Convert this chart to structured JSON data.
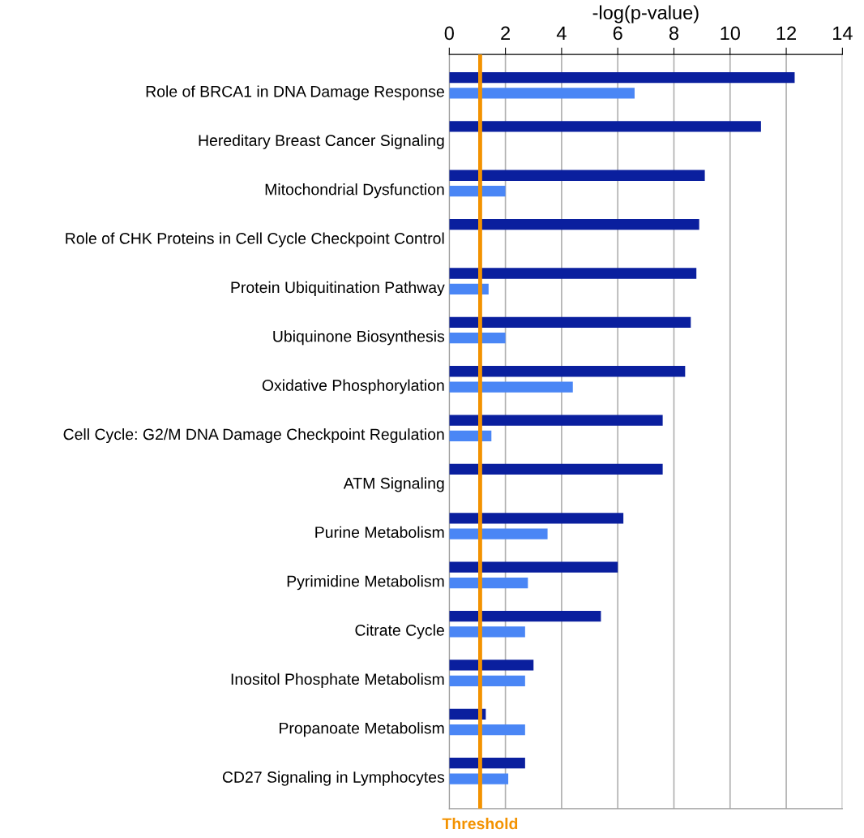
{
  "chart_data": {
    "type": "bar",
    "orientation": "horizontal",
    "xlabel": "-log(p-value)",
    "categories": [
      "Role of BRCA1 in DNA Damage Response",
      "Hereditary Breast Cancer Signaling",
      "Mitochondrial Dysfunction",
      "Role of CHK Proteins in Cell Cycle Checkpoint Control",
      "Protein Ubiquitination Pathway",
      "Ubiquinone Biosynthesis",
      "Oxidative Phosphorylation",
      "Cell Cycle: G2/M DNA Damage Checkpoint Regulation",
      "ATM Signaling",
      "Purine Metabolism",
      "Pyrimidine Metabolism",
      "Citrate Cycle",
      "Inositol Phosphate Metabolism",
      "Propanoate Metabolism",
      "CD27 Signaling in Lymphocytes"
    ],
    "series": [
      {
        "color": "#0a1f9e",
        "values": [
          12.3,
          11.1,
          9.1,
          8.9,
          8.8,
          8.6,
          8.4,
          7.6,
          7.6,
          6.2,
          6.0,
          5.4,
          3.0,
          1.3,
          2.7
        ]
      },
      {
        "color": "#4a86f5",
        "values": [
          6.6,
          null,
          2.0,
          null,
          1.4,
          2.0,
          4.4,
          1.5,
          null,
          3.5,
          2.8,
          2.7,
          2.7,
          2.7,
          2.1
        ]
      }
    ],
    "xlim": [
      0,
      14
    ],
    "xticks": [
      0,
      2,
      4,
      6,
      8,
      10,
      12,
      14
    ],
    "grid": "x",
    "ref_lines": [
      {
        "axis": "x",
        "value": 1.1,
        "label": "Threshold",
        "color": "#f39200"
      }
    ]
  }
}
